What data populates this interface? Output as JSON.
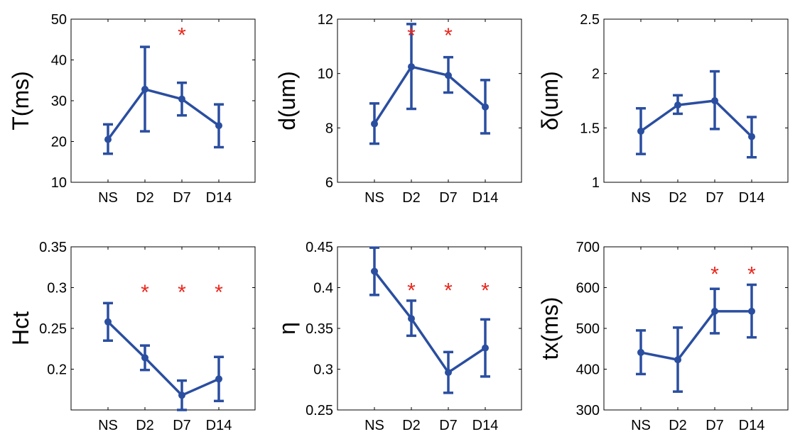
{
  "chart_data": [
    {
      "type": "line",
      "ylabel": "T(ms)",
      "categories": [
        "NS",
        "D2",
        "D7",
        "D14"
      ],
      "values": [
        20.5,
        32.8,
        30.4,
        23.9
      ],
      "err_low": [
        17.0,
        22.5,
        26.4,
        18.6
      ],
      "err_high": [
        24.2,
        43.2,
        34.4,
        29.1
      ],
      "yticks": [
        10,
        20,
        30,
        40,
        50
      ],
      "ylim": [
        10,
        50
      ],
      "stars": [
        {
          "category": "D7",
          "y": 46.8,
          "text": "*"
        }
      ]
    },
    {
      "type": "line",
      "ylabel": "d(um)",
      "categories": [
        "NS",
        "D2",
        "D7",
        "D14"
      ],
      "values": [
        8.15,
        10.25,
        9.93,
        8.77
      ],
      "err_low": [
        7.42,
        8.7,
        9.3,
        7.8
      ],
      "err_high": [
        8.9,
        11.82,
        10.6,
        9.76
      ],
      "yticks": [
        6,
        8,
        10,
        12
      ],
      "ylim": [
        6,
        12
      ],
      "stars": [
        {
          "category": "D2",
          "y": 11.5,
          "text": "*"
        },
        {
          "category": "D7",
          "y": 11.5,
          "text": "*"
        }
      ]
    },
    {
      "type": "line",
      "ylabel": "δ(um)",
      "categories": [
        "NS",
        "D2",
        "D7",
        "D14"
      ],
      "values": [
        1.47,
        1.71,
        1.75,
        1.42
      ],
      "err_low": [
        1.26,
        1.63,
        1.49,
        1.23
      ],
      "err_high": [
        1.68,
        1.8,
        2.02,
        1.6
      ],
      "yticks": [
        1,
        1.5,
        2,
        2.5
      ],
      "ylim": [
        1,
        2.5
      ],
      "stars": []
    },
    {
      "type": "line",
      "ylabel": "Hct",
      "categories": [
        "NS",
        "D2",
        "D7",
        "D14"
      ],
      "values": [
        0.258,
        0.214,
        0.168,
        0.188
      ],
      "err_low": [
        0.235,
        0.199,
        0.15,
        0.161
      ],
      "err_high": [
        0.281,
        0.229,
        0.186,
        0.215
      ],
      "yticks": [
        0.2,
        0.25,
        0.3,
        0.35
      ],
      "yticklabels": [
        "0.2",
        "0.25",
        "0.3",
        "0.35"
      ],
      "ylim": [
        0.15,
        0.35
      ],
      "stars": [
        {
          "category": "D2",
          "y": 0.298,
          "text": "*"
        },
        {
          "category": "D7",
          "y": 0.298,
          "text": "*"
        },
        {
          "category": "D14",
          "y": 0.298,
          "text": "*"
        }
      ]
    },
    {
      "type": "line",
      "ylabel": "η",
      "categories": [
        "NS",
        "D2",
        "D7",
        "D14"
      ],
      "values": [
        0.42,
        0.362,
        0.296,
        0.326
      ],
      "err_low": [
        0.391,
        0.341,
        0.271,
        0.291
      ],
      "err_high": [
        0.449,
        0.384,
        0.321,
        0.361
      ],
      "yticks": [
        0.25,
        0.3,
        0.35,
        0.4,
        0.45
      ],
      "yticklabels": [
        "0.25",
        "0.3",
        "0.35",
        "0.4",
        "0.45"
      ],
      "ylim": [
        0.25,
        0.45
      ],
      "stars": [
        {
          "category": "D2",
          "y": 0.4,
          "text": "*"
        },
        {
          "category": "D7",
          "y": 0.4,
          "text": "*"
        },
        {
          "category": "D14",
          "y": 0.4,
          "text": "*"
        }
      ]
    },
    {
      "type": "line",
      "ylabel": "tx(ms)",
      "categories": [
        "NS",
        "D2",
        "D7",
        "D14"
      ],
      "values": [
        441,
        423,
        542,
        542
      ],
      "err_low": [
        388,
        345,
        488,
        478
      ],
      "err_high": [
        495,
        502,
        597,
        607
      ],
      "yticks": [
        300,
        400,
        500,
        600,
        700
      ],
      "ylim": [
        300,
        700
      ],
      "stars": [
        {
          "category": "D7",
          "y": 640,
          "text": "*"
        },
        {
          "category": "D14",
          "y": 640,
          "text": "*"
        }
      ]
    }
  ],
  "colors": {
    "series": "#2a4ea0",
    "star": "#e8281e"
  }
}
